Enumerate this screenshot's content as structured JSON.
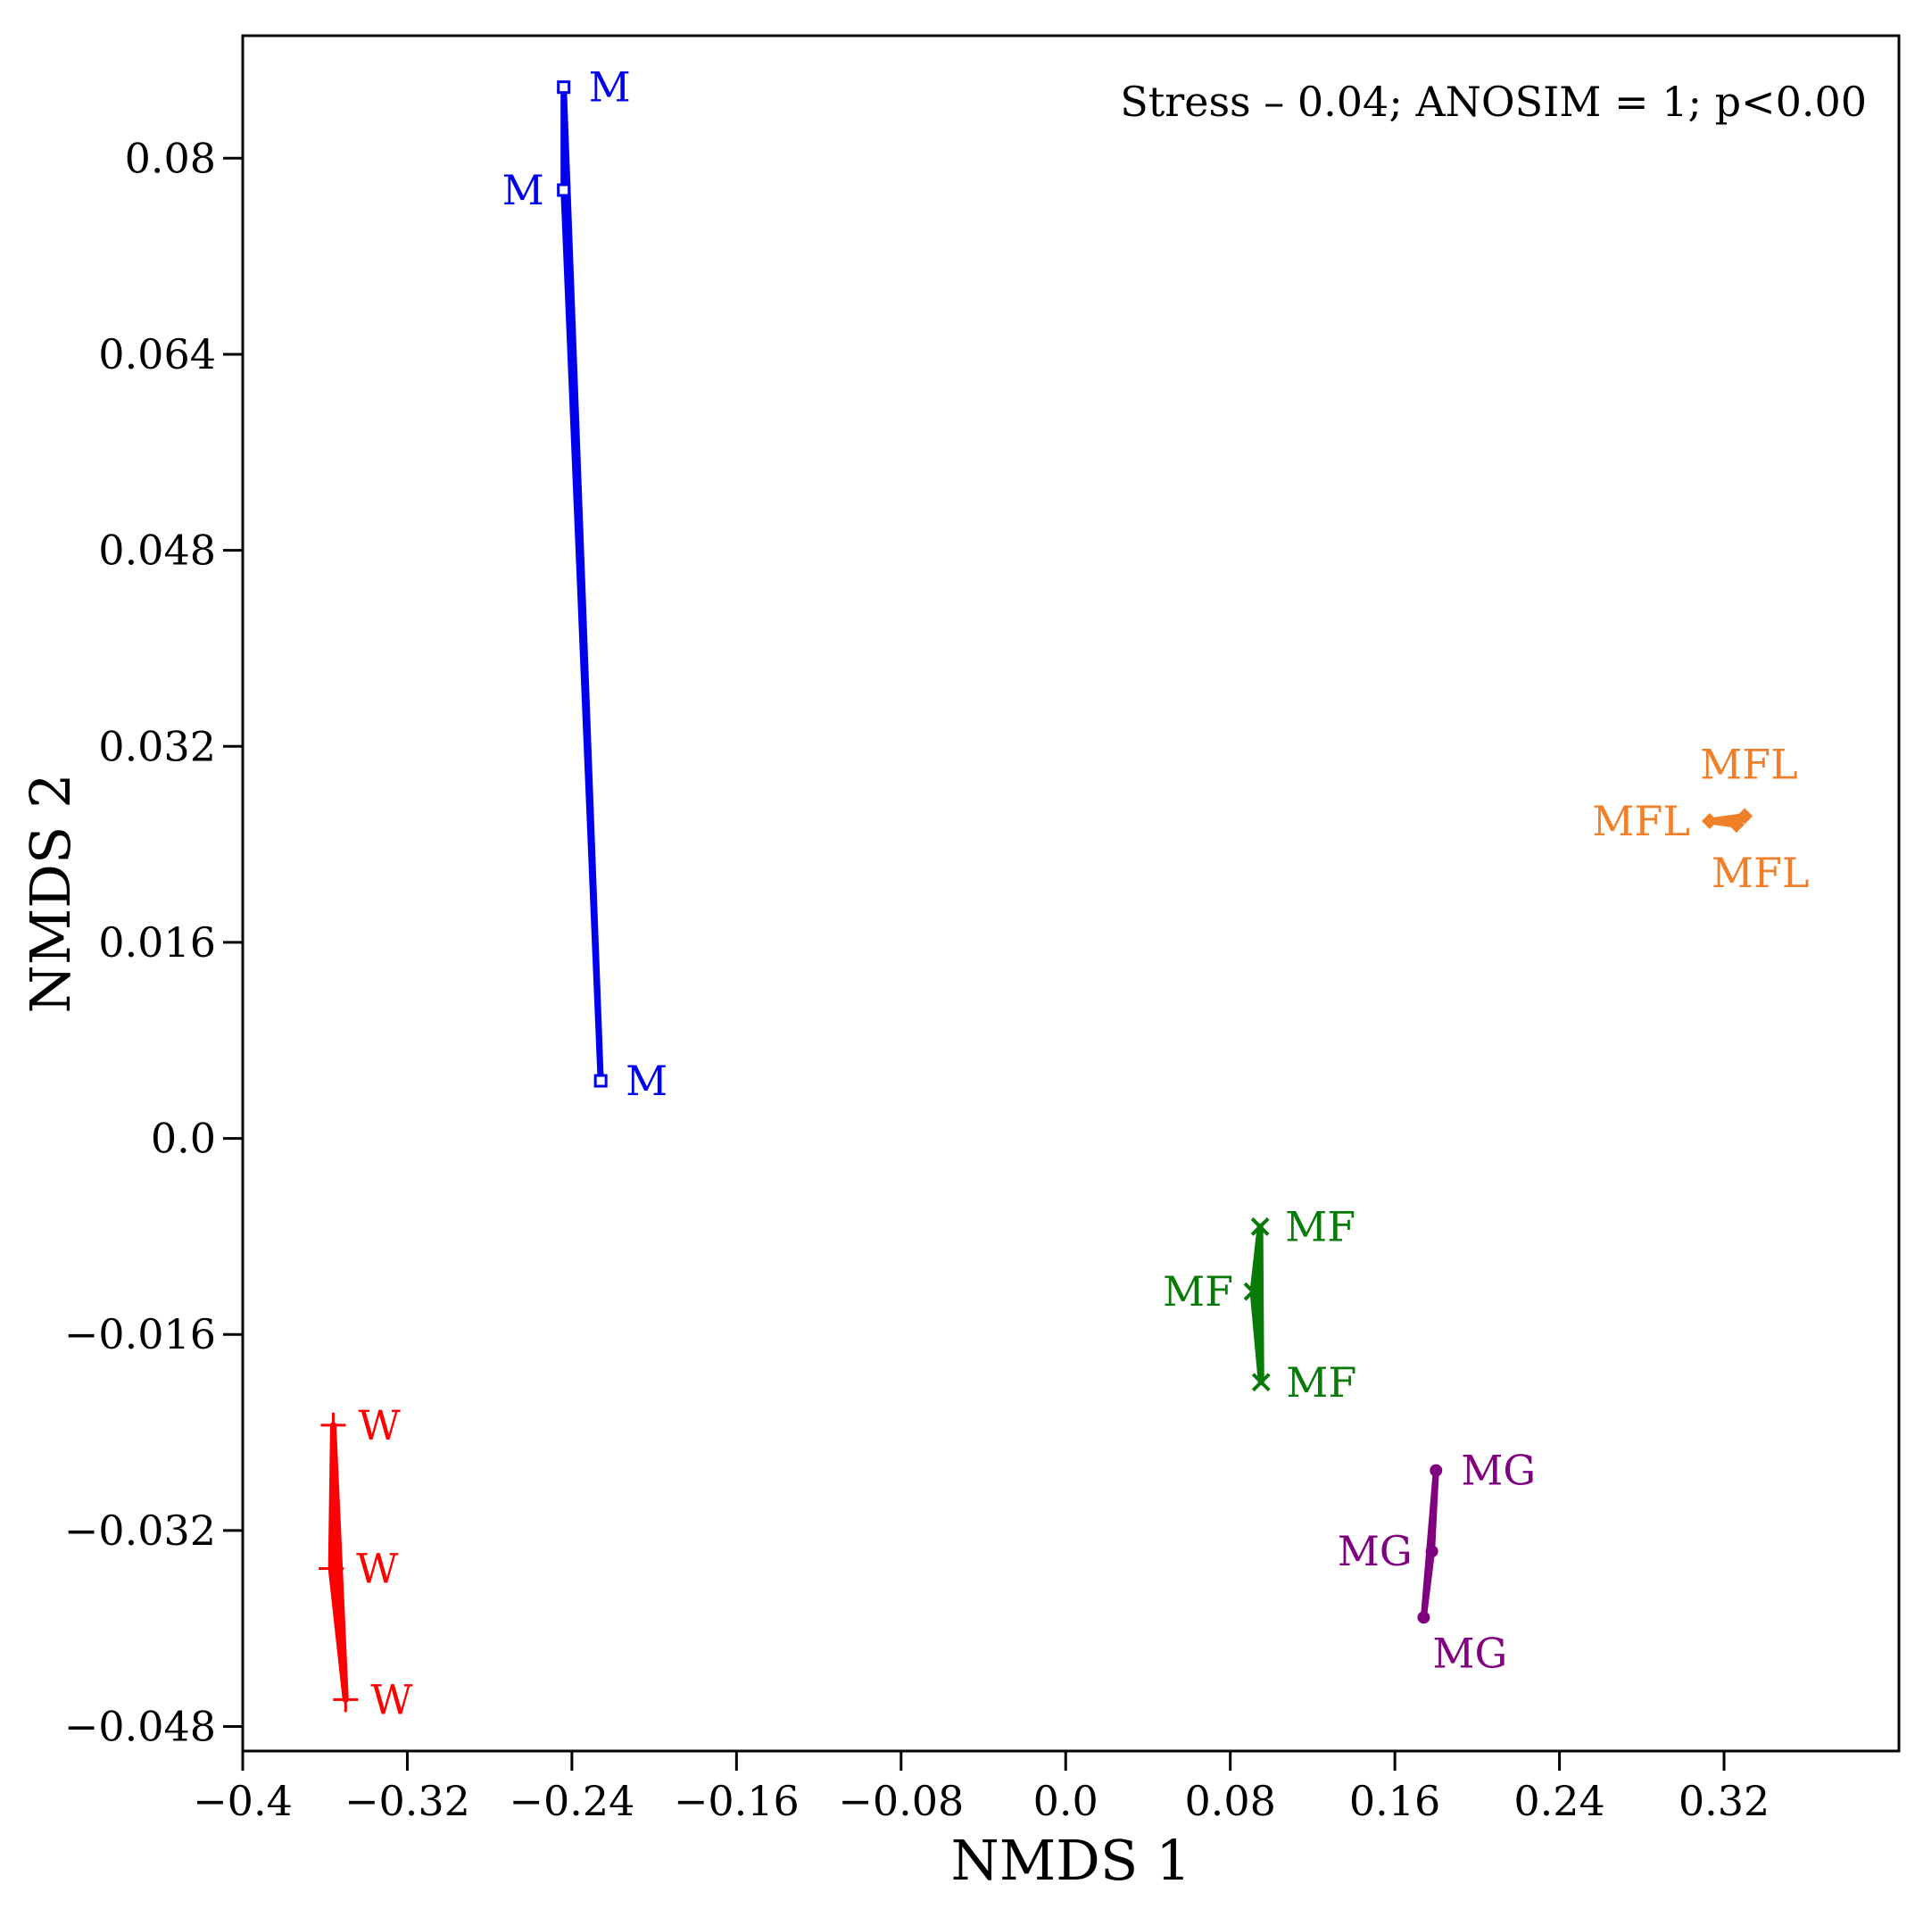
{
  "chart_data": {
    "type": "scatter",
    "title": "",
    "xlabel": "NMDS 1",
    "ylabel": "NMDS 2",
    "xlim": [
      -0.4,
      0.405
    ],
    "ylim": [
      -0.05,
      0.09
    ],
    "xticks": [
      -0.4,
      -0.32,
      -0.24,
      -0.16,
      -0.08,
      0.0,
      0.08,
      0.16,
      0.24,
      0.32
    ],
    "xtick_labels": [
      "−0.4",
      "−0.32",
      "−0.24",
      "−0.16",
      "−0.08",
      "0.0",
      "0.08",
      "0.16",
      "0.24",
      "0.32"
    ],
    "yticks": [
      -0.048,
      -0.032,
      -0.016,
      0.0,
      0.016,
      0.032,
      0.048,
      0.064,
      0.08
    ],
    "ytick_labels": [
      "−0.048",
      "−0.032",
      "−0.016",
      "0.0",
      "0.016",
      "0.032",
      "0.048",
      "0.064",
      "0.08"
    ],
    "grid": false,
    "annotation": "Stress – 0.04; ANOSIM = 1; p<0.00",
    "series": [
      {
        "name": "M",
        "color": "#0000ee",
        "marker": "square",
        "points": [
          {
            "x": -0.244,
            "y": 0.0858,
            "label": "M",
            "label_side": "right"
          },
          {
            "x": -0.244,
            "y": 0.0774,
            "label": "M",
            "label_side": "left"
          },
          {
            "x": -0.226,
            "y": 0.0047,
            "label": "M",
            "label_side": "right"
          }
        ]
      },
      {
        "name": "W",
        "color": "#ff0000",
        "marker": "plus",
        "points": [
          {
            "x": -0.356,
            "y": -0.0234,
            "label": "W",
            "label_side": "right"
          },
          {
            "x": -0.357,
            "y": -0.0351,
            "label": "W",
            "label_side": "right"
          },
          {
            "x": -0.35,
            "y": -0.0458,
            "label": "W",
            "label_side": "right"
          }
        ]
      },
      {
        "name": "MF",
        "color": "#087a08",
        "marker": "cross",
        "points": [
          {
            "x": 0.0945,
            "y": -0.0072,
            "label": "MF",
            "label_side": "right"
          },
          {
            "x": 0.091,
            "y": -0.0125,
            "label": "MF",
            "label_side": "left"
          },
          {
            "x": 0.095,
            "y": -0.0199,
            "label": "MF",
            "label_side": "right"
          }
        ]
      },
      {
        "name": "MG",
        "color": "#800080",
        "marker": "dot",
        "points": [
          {
            "x": 0.18,
            "y": -0.0271,
            "label": "MG",
            "label_side": "right"
          },
          {
            "x": 0.178,
            "y": -0.0337,
            "label": "MG",
            "label_side": "left"
          },
          {
            "x": 0.174,
            "y": -0.0391,
            "label": "MG",
            "label_side": "below"
          }
        ]
      },
      {
        "name": "MFL",
        "color": "#f07f2a",
        "marker": "diamond",
        "points": [
          {
            "x": 0.33,
            "y": 0.0263,
            "label": "MFL",
            "label_side": "above"
          },
          {
            "x": 0.313,
            "y": 0.0259,
            "label": "MFL",
            "label_side": "left"
          },
          {
            "x": 0.326,
            "y": 0.0256,
            "label": "MFL",
            "label_side": "below"
          }
        ]
      }
    ]
  }
}
